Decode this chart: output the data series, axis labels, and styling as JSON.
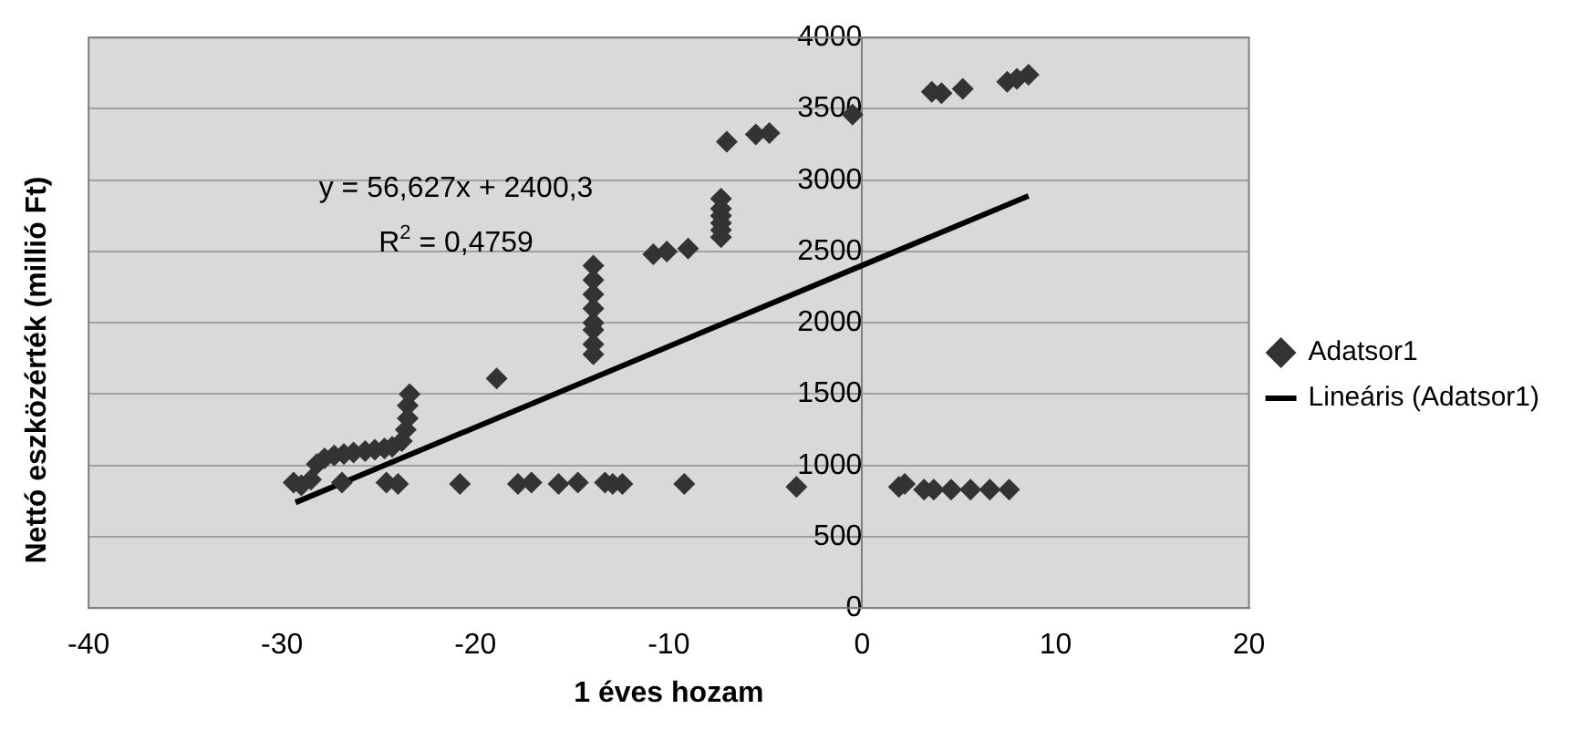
{
  "chart_data": {
    "type": "scatter",
    "xlabel": "1 éves hozam",
    "ylabel": "Nettó eszközérték (millió Ft)",
    "annotations": [
      "y = 56,627x + 2400,3",
      "R$^{2}$ = 0,4759"
    ],
    "xlim": [
      -40,
      20
    ],
    "xticks": [
      -40,
      -30,
      -20,
      -10,
      0,
      10,
      20
    ],
    "ylim": [
      0,
      4000
    ],
    "yticks": [
      0,
      500,
      1000,
      1500,
      2000,
      2500,
      3000,
      3500,
      4000
    ],
    "grid": "y",
    "legend": "right",
    "marker": "diamond",
    "series": [
      {
        "name": "Adatsor1",
        "color": "#333333",
        "x": [
          -29.4,
          -29.0,
          -28.5,
          -28.2,
          -27.8,
          -27.3,
          -26.8,
          -26.3,
          -25.7,
          -25.2,
          -24.7,
          -24.3,
          -23.8,
          -23.6,
          -23.5,
          -23.5,
          -23.4,
          -26.9,
          -24.6,
          -24.0,
          -20.8,
          -18.9,
          -17.8,
          -17.1,
          -15.7,
          -14.7,
          -13.3,
          -13.9,
          -13.9,
          -13.9,
          -13.9,
          -13.9,
          -13.9,
          -13.9,
          -13.9,
          -12.9,
          -12.4,
          -9.2,
          -3.4,
          -10.8,
          -10.1,
          -9.0,
          -7.3,
          -7.3,
          -7.3,
          -7.3,
          -7.3,
          -7.3,
          -7.0,
          -5.5,
          -4.8,
          -0.5,
          3.6,
          4.1,
          5.2,
          7.5,
          8.0,
          8.6,
          1.9,
          2.2,
          3.2,
          3.7,
          4.6,
          5.6,
          6.6,
          7.6
        ],
        "values": [
          880,
          860,
          900,
          1010,
          1050,
          1070,
          1080,
          1090,
          1100,
          1110,
          1120,
          1130,
          1170,
          1250,
          1330,
          1420,
          1500,
          880,
          880,
          870,
          870,
          1610,
          870,
          880,
          870,
          880,
          880,
          2400,
          2300,
          2200,
          2100,
          2000,
          1950,
          1850,
          1780,
          870,
          870,
          870,
          850,
          2480,
          2500,
          2520,
          2870,
          2800,
          2750,
          2700,
          2650,
          2600,
          3270,
          3320,
          3330,
          3460,
          3620,
          3610,
          3640,
          3690,
          3710,
          3740,
          850,
          870,
          830,
          830,
          830,
          830,
          830,
          830
        ]
      },
      {
        "name": "Lineáris (Adatsor1)",
        "color": "#000000",
        "type": "line",
        "marker": "none",
        "line_style": "solid",
        "x": [
          -29.3,
          8.6
        ],
        "values": [
          740,
          2890
        ]
      }
    ]
  }
}
